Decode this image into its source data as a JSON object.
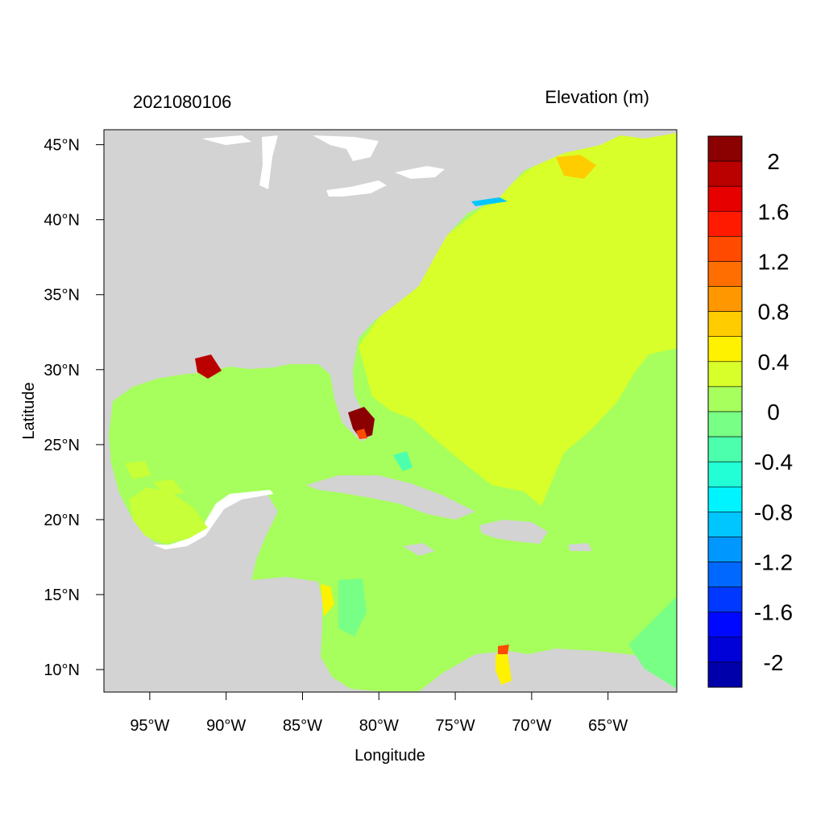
{
  "map": {
    "title_left": "2021080106",
    "title_right": "Elevation (m)",
    "xlabel": "Longitude",
    "ylabel": "Latitude",
    "lon_range": [
      -98,
      -60.5
    ],
    "lat_range": [
      8.5,
      46
    ],
    "x_ticks": [
      {
        "value": -95,
        "label": "95°W"
      },
      {
        "value": -90,
        "label": "90°W"
      },
      {
        "value": -85,
        "label": "85°W"
      },
      {
        "value": -80,
        "label": "80°W"
      },
      {
        "value": -75,
        "label": "75°W"
      },
      {
        "value": -70,
        "label": "70°W"
      },
      {
        "value": -65,
        "label": "65°W"
      }
    ],
    "y_ticks": [
      {
        "value": 45,
        "label": "45°N"
      },
      {
        "value": 40,
        "label": "40°N"
      },
      {
        "value": 35,
        "label": "35°N"
      },
      {
        "value": 30,
        "label": "30°N"
      },
      {
        "value": 25,
        "label": "25°N"
      },
      {
        "value": 20,
        "label": "20°N"
      },
      {
        "value": 15,
        "label": "15°N"
      },
      {
        "value": 10,
        "label": "10°N"
      }
    ],
    "colors": {
      "land": "#d3d3d3",
      "ocean_base": "#a6ff5c",
      "atlantic_high": "#d8ff2a"
    },
    "colorbar": {
      "colors": [
        "#8b0000",
        "#bb0000",
        "#e60000",
        "#ff1a00",
        "#ff4a00",
        "#ff6e00",
        "#ff9800",
        "#ffcc00",
        "#fff200",
        "#d8ff2a",
        "#a6ff5c",
        "#78ff86",
        "#4cffad",
        "#22ffd6",
        "#00f4ff",
        "#00c6ff",
        "#0098ff",
        "#0068ff",
        "#0038ff",
        "#0008ff",
        "#0000d8",
        "#0000aa"
      ],
      "labels": [
        "2",
        "1.6",
        "1.2",
        "0.8",
        "0.4",
        "0",
        "-0.4",
        "-0.8",
        "-1.2",
        "-1.6",
        "-2"
      ]
    }
  }
}
